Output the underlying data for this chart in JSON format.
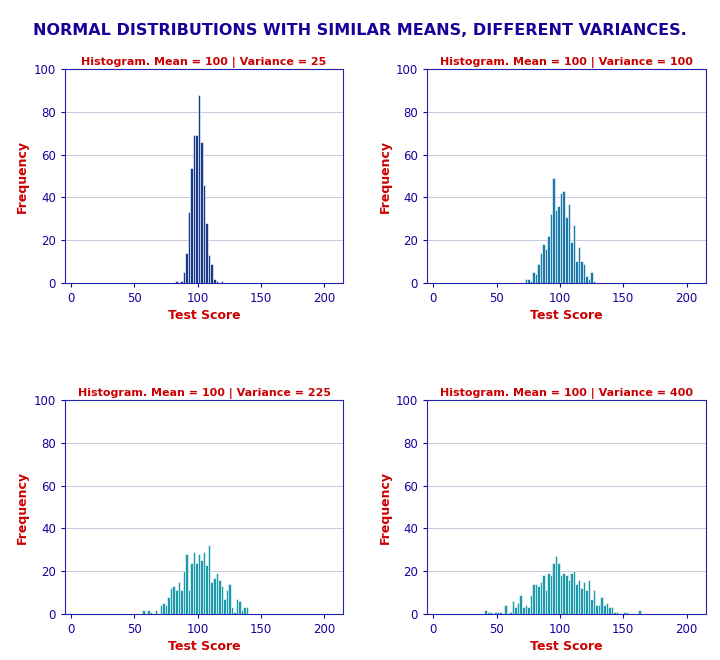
{
  "title": "NORMAL DISTRIBUTIONS WITH SIMILAR MEANS, DIFFERENT VARIANCES.",
  "title_color": "#1a0099",
  "title_fontsize": 11.5,
  "background_color": "#ffffff",
  "subplots": [
    {
      "mean": 100,
      "variance": 25,
      "std": 5,
      "color": "#1a3a8c",
      "subtitle_color": "#cc0000"
    },
    {
      "mean": 100,
      "variance": 100,
      "std": 10,
      "color": "#1a7aaa",
      "subtitle_color": "#cc0000"
    },
    {
      "mean": 100,
      "variance": 225,
      "std": 15,
      "color": "#1a9aaa",
      "subtitle_color": "#cc0000"
    },
    {
      "mean": 100,
      "variance": 400,
      "std": 20,
      "color": "#1a9aaa",
      "subtitle_color": "#cc0000"
    }
  ],
  "n_samples": 500,
  "xlabel": "Test Score",
  "ylabel": "Frequency",
  "xlabel_color": "#cc0000",
  "ylabel_color": "#cc0000",
  "axis_label_fontsize": 9,
  "tick_color": "#1a0099",
  "tick_fontsize": 8.5,
  "xlim": [
    -5,
    215
  ],
  "ylim": [
    0,
    100
  ],
  "xticks": [
    0,
    50,
    100,
    150,
    200
  ],
  "yticks": [
    0,
    20,
    40,
    60,
    80,
    100
  ],
  "grid_color": "#c8c8dc",
  "bin_width": 2,
  "seed": 42
}
